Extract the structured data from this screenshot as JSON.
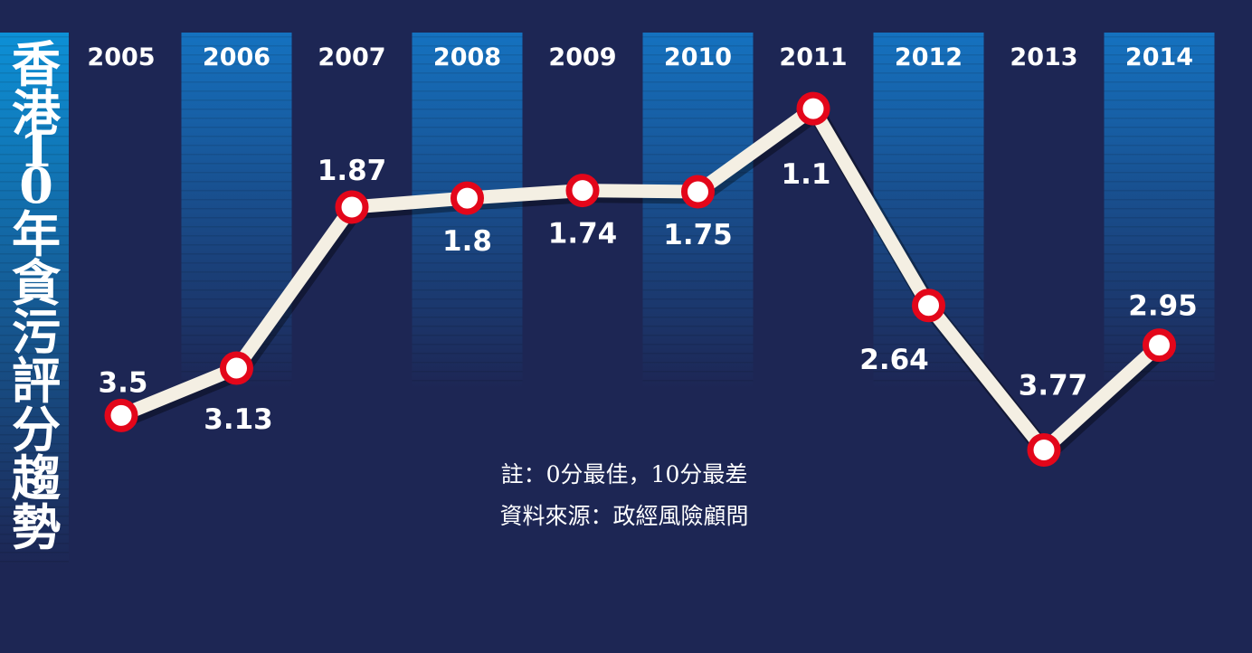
{
  "colors": {
    "background": "#1d2654",
    "band_top": "#1572c0",
    "band_bottom": "#1d2654",
    "title_band_top": "#0d90d6",
    "title_band_bottom": "#1d2654",
    "line": "#f4efe3",
    "marker_ring": "#e3061a",
    "marker_fill": "#ffffff",
    "text": "#ffffff"
  },
  "chart_data": {
    "type": "line",
    "title": "香港10年貪污評分趨勢",
    "x": [
      "2005",
      "2006",
      "2007",
      "2008",
      "2009",
      "2010",
      "2011",
      "2012",
      "2013",
      "2014"
    ],
    "series": [
      {
        "values": [
          3.5,
          3.13,
          1.87,
          1.8,
          1.74,
          1.75,
          1.1,
          2.64,
          3.77,
          2.95
        ]
      }
    ],
    "data_labels": [
      "3.5",
      "3.13",
      "1.87",
      "1.8",
      "1.74",
      "1.75",
      "1.1",
      "2.64",
      "3.77",
      "2.95"
    ],
    "y_inverted": true,
    "ylim": [
      1.0,
      4.0
    ],
    "grid": false,
    "legend": "none",
    "annotations": [
      "註：0分最佳，10分最差",
      "資料來源：政經風險顧問"
    ]
  }
}
